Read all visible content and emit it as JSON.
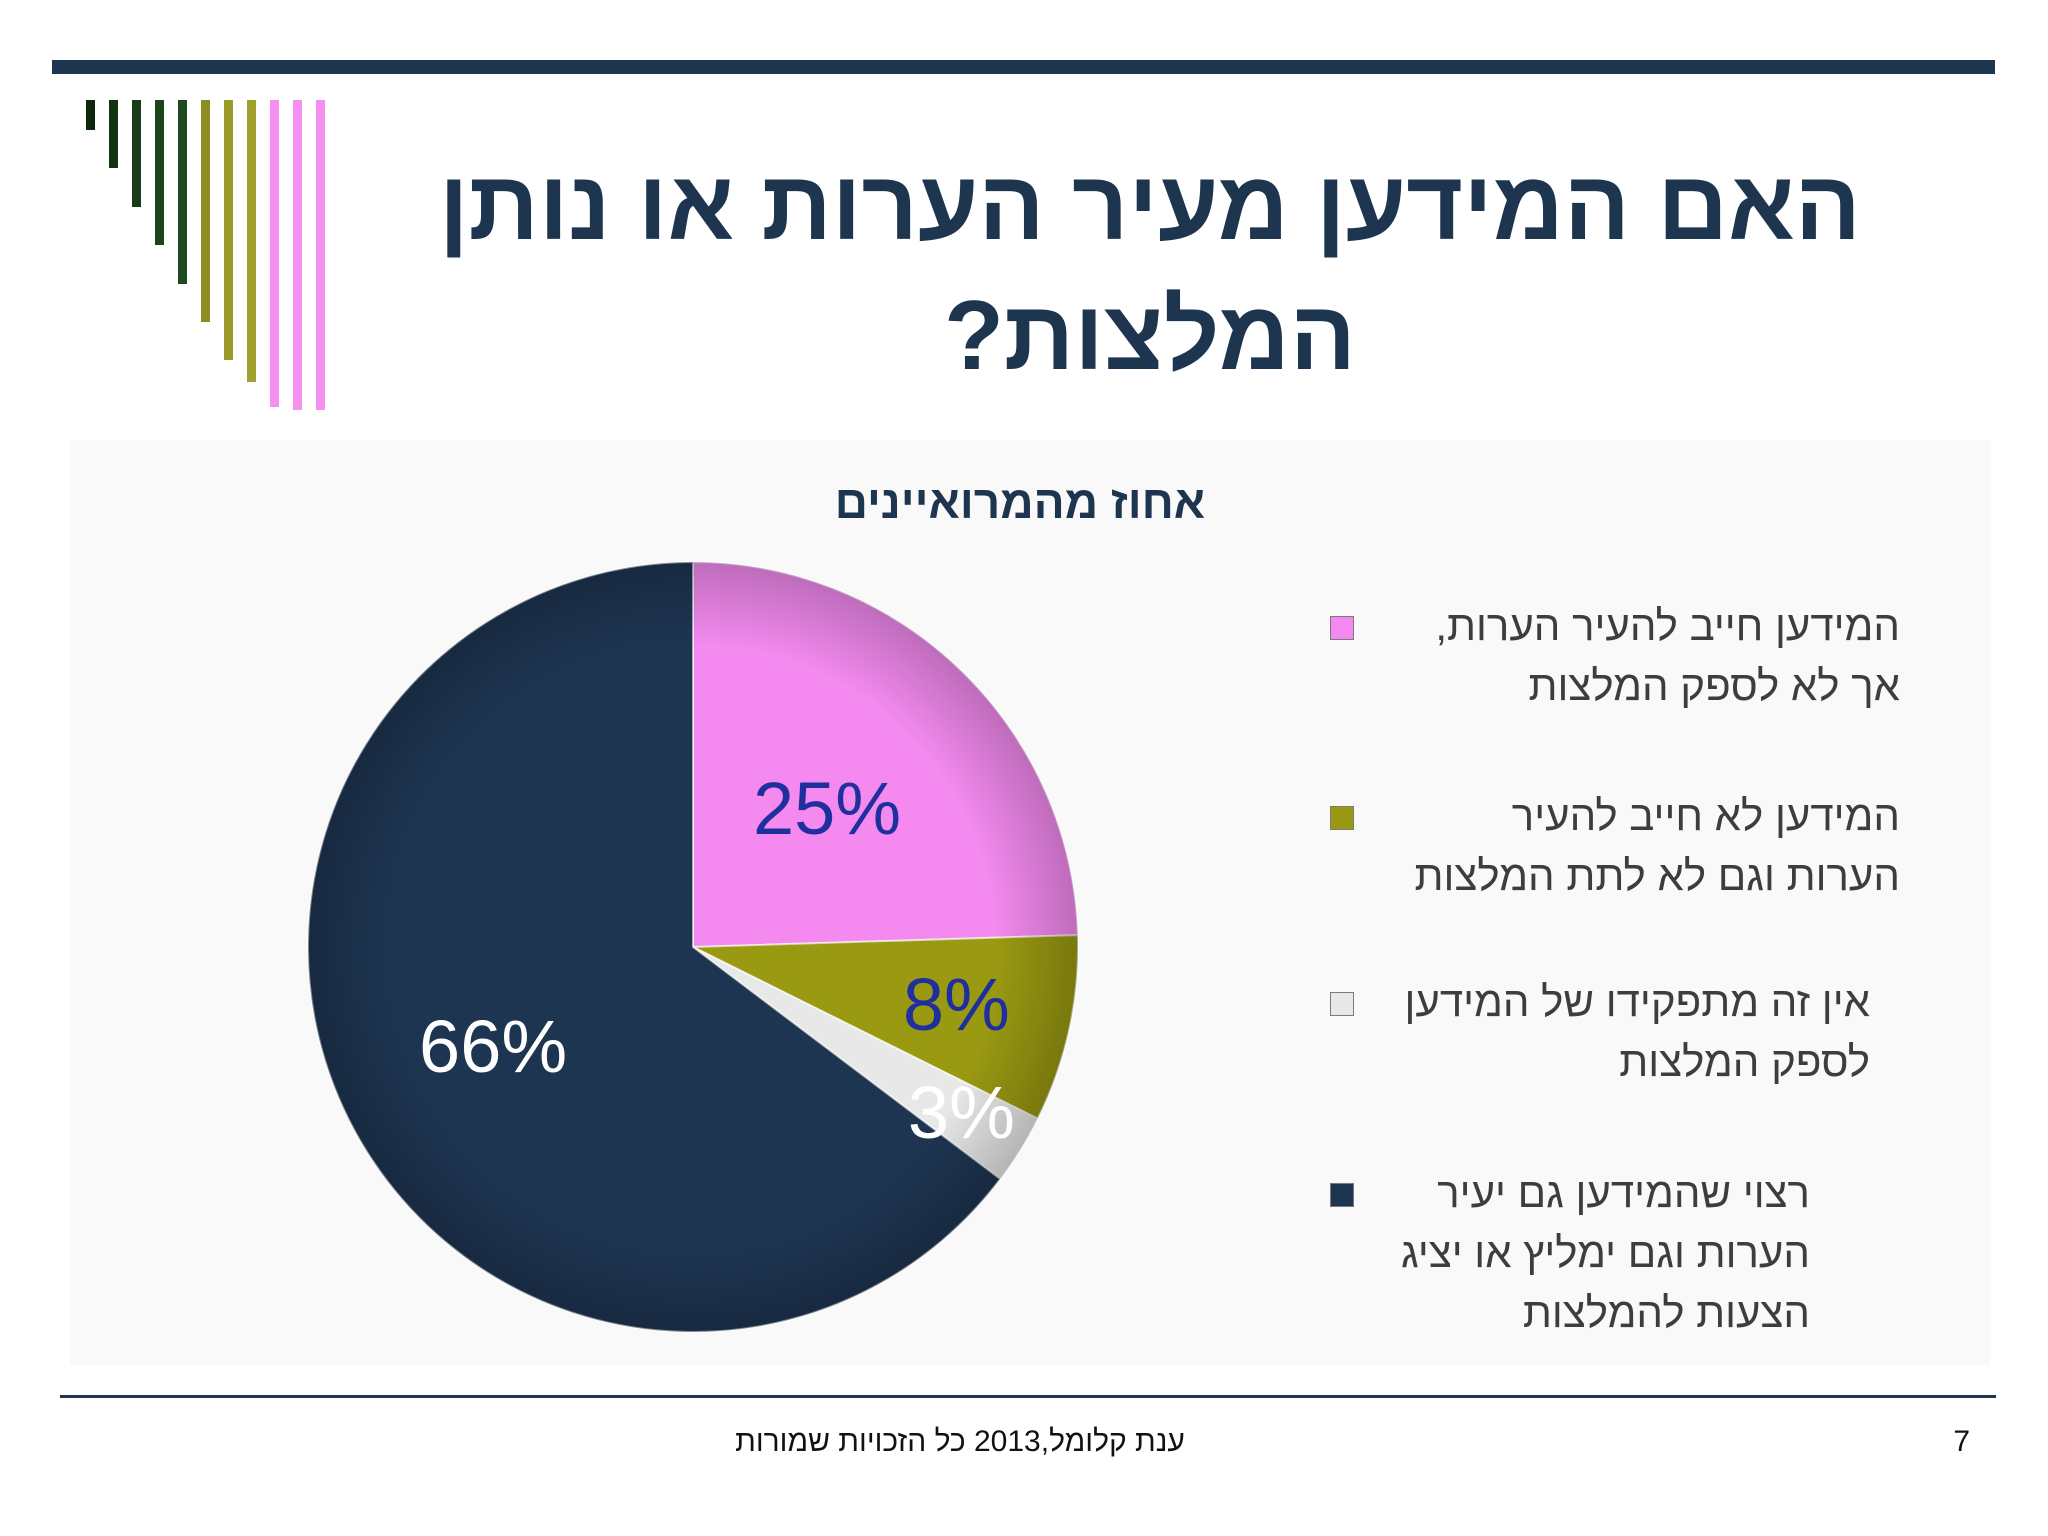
{
  "slide": {
    "title": "האם המידען מעיר הערות או נותן המלצות?",
    "footer": "ענת קלומל,2013 כל הזכויות שמורות",
    "page_number": "7"
  },
  "colors": {
    "theme_dark": "#1e3550",
    "pink": "#f48af0",
    "olive": "#9a9a12",
    "white_grey": "#e8e8e8",
    "navy": "#1e3552",
    "label_blue": "#1f2f9e",
    "label_white": "#ffffff"
  },
  "chart_data": {
    "type": "pie",
    "title": "אחוז מהמרואיינים",
    "labels": [
      "המידען חייב להעיר הערות, אך לא לספק המלצות",
      "המידען לא חייב להעיר הערות וגם לא לתת המלצות",
      "אין זה מתפקידו של המידען לספק המלצות",
      "רצוי שהמידען גם יעיר הערות וגם ימליץ או יציג הצעות להמלצות"
    ],
    "legend_lines": [
      [
        "המידען חייב להעיר הערות,",
        "אך לא לספק המלצות"
      ],
      [
        "המידען לא חייב להעיר",
        "הערות וגם לא לתת המלצות"
      ],
      [
        "אין זה מתפקידו של המידען",
        "לספק המלצות"
      ],
      [
        "רצוי שהמידען גם יעיר",
        "הערות וגם ימליץ או יציג",
        "הצעות להמלצות"
      ]
    ],
    "values": [
      25,
      8,
      3,
      66
    ],
    "data_labels": [
      "25%",
      "8%",
      "3%",
      "66%"
    ],
    "colors": [
      "#f48af0",
      "#9a9a12",
      "#e8e8e8",
      "#1e3552"
    ],
    "label_colors": [
      "#1f2f9e",
      "#1f2f9e",
      "#ffffff",
      "#ffffff"
    ],
    "start_angle_deg": 0,
    "direction": "clockwise",
    "legend_position": "right"
  }
}
